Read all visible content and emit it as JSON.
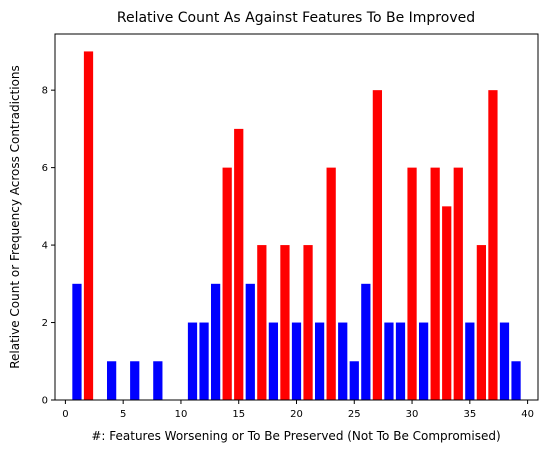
{
  "chart_data": {
    "type": "bar",
    "title": "Relative Count As Against Features To Be Improved",
    "xlabel": "#: Features Worsening or To Be Preserved (Not To Be Compromised)",
    "ylabel": "Relative Count or Frequency Across Contradictions",
    "xlim": [
      -0.9,
      40.9
    ],
    "ylim": [
      0,
      9.45
    ],
    "xticks": [
      0,
      5,
      10,
      15,
      20,
      25,
      30,
      35,
      40
    ],
    "yticks": [
      0,
      2,
      4,
      6,
      8
    ],
    "bar_width": 0.8,
    "colors": {
      "blue": "#0000ff",
      "red": "#ff0000"
    },
    "bars": [
      {
        "x": 1,
        "value": 3,
        "color": "blue"
      },
      {
        "x": 2,
        "value": 9,
        "color": "red"
      },
      {
        "x": 4,
        "value": 1,
        "color": "blue"
      },
      {
        "x": 6,
        "value": 1,
        "color": "blue"
      },
      {
        "x": 8,
        "value": 1,
        "color": "blue"
      },
      {
        "x": 11,
        "value": 2,
        "color": "blue"
      },
      {
        "x": 12,
        "value": 2,
        "color": "blue"
      },
      {
        "x": 13,
        "value": 3,
        "color": "blue"
      },
      {
        "x": 14,
        "value": 6,
        "color": "red"
      },
      {
        "x": 15,
        "value": 7,
        "color": "red"
      },
      {
        "x": 16,
        "value": 3,
        "color": "blue"
      },
      {
        "x": 17,
        "value": 4,
        "color": "red"
      },
      {
        "x": 18,
        "value": 2,
        "color": "blue"
      },
      {
        "x": 19,
        "value": 4,
        "color": "red"
      },
      {
        "x": 20,
        "value": 2,
        "color": "blue"
      },
      {
        "x": 21,
        "value": 4,
        "color": "red"
      },
      {
        "x": 22,
        "value": 2,
        "color": "blue"
      },
      {
        "x": 23,
        "value": 6,
        "color": "red"
      },
      {
        "x": 24,
        "value": 2,
        "color": "blue"
      },
      {
        "x": 25,
        "value": 1,
        "color": "blue"
      },
      {
        "x": 26,
        "value": 3,
        "color": "blue"
      },
      {
        "x": 27,
        "value": 8,
        "color": "red"
      },
      {
        "x": 28,
        "value": 2,
        "color": "blue"
      },
      {
        "x": 29,
        "value": 2,
        "color": "blue"
      },
      {
        "x": 30,
        "value": 6,
        "color": "red"
      },
      {
        "x": 31,
        "value": 2,
        "color": "blue"
      },
      {
        "x": 32,
        "value": 6,
        "color": "red"
      },
      {
        "x": 33,
        "value": 5,
        "color": "red"
      },
      {
        "x": 34,
        "value": 6,
        "color": "red"
      },
      {
        "x": 35,
        "value": 2,
        "color": "blue"
      },
      {
        "x": 36,
        "value": 4,
        "color": "red"
      },
      {
        "x": 37,
        "value": 8,
        "color": "red"
      },
      {
        "x": 38,
        "value": 2,
        "color": "blue"
      },
      {
        "x": 39,
        "value": 1,
        "color": "blue"
      }
    ]
  }
}
